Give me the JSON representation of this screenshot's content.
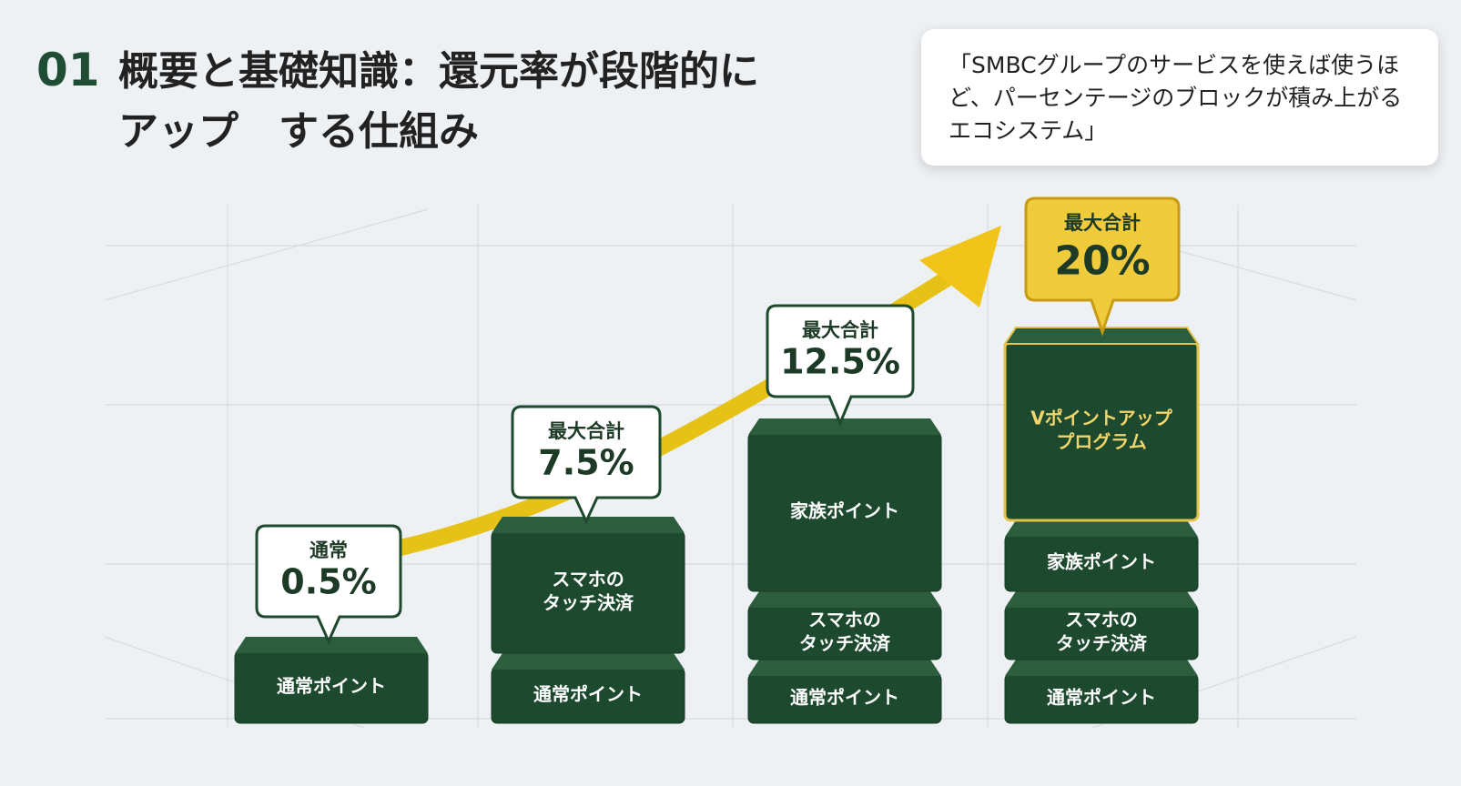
{
  "header": {
    "number": "01",
    "title_lines": [
      "概要と基礎知識：還元率が段階的に",
      "アップ　する仕組み"
    ]
  },
  "quote": "「SMBCグループのサービスを使えば使うほど、パーセンテージのブロックが積み上がるエコシステム」",
  "columns": [
    {
      "label": "通常",
      "value": "0.5%",
      "blocks": [
        [
          "通常ポイント"
        ]
      ]
    },
    {
      "label": "最大合計",
      "value": "7.5%",
      "blocks": [
        [
          "通常ポイント"
        ],
        [
          "スマホの",
          "タッチ決済"
        ]
      ]
    },
    {
      "label": "最大合計",
      "value": "12.5%",
      "blocks": [
        [
          "通常ポイント"
        ],
        [
          "スマホの",
          "タッチ決済"
        ],
        [
          "家族ポイント"
        ]
      ]
    },
    {
      "label": "最大合計",
      "value": "20%",
      "blocks": [
        [
          "通常ポイント"
        ],
        [
          "スマホの",
          "タッチ決済"
        ],
        [
          "家族ポイント"
        ],
        [
          "Vポイントアップ",
          "プログラム"
        ]
      ]
    }
  ]
}
